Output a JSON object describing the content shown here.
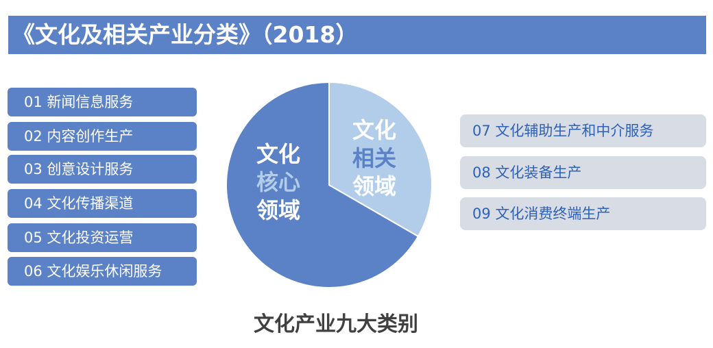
{
  "title": "《文化及相关产业分类》（2018）",
  "left_items": [
    "01 新闻信息服务",
    "02 内容创作生产",
    "03 创意设计服务",
    "04 文化传播渠道",
    "05 文化投资运营",
    "06 文化娱乐休闲服务"
  ],
  "right_items": [
    "07 文化辅助生产和中介服务",
    "08 文化装备生产",
    "09 文化消费终端生产"
  ],
  "pie": {
    "core": {
      "line1": "文化",
      "line2": "核心",
      "line3": "领域",
      "share": 0.6667,
      "color": "#5b82c6"
    },
    "related": {
      "line1": "文化",
      "line2": "相关",
      "line3": "领域",
      "share": 0.3333,
      "color": "#b1cdea"
    }
  },
  "footer": "文化产业九大类别"
}
